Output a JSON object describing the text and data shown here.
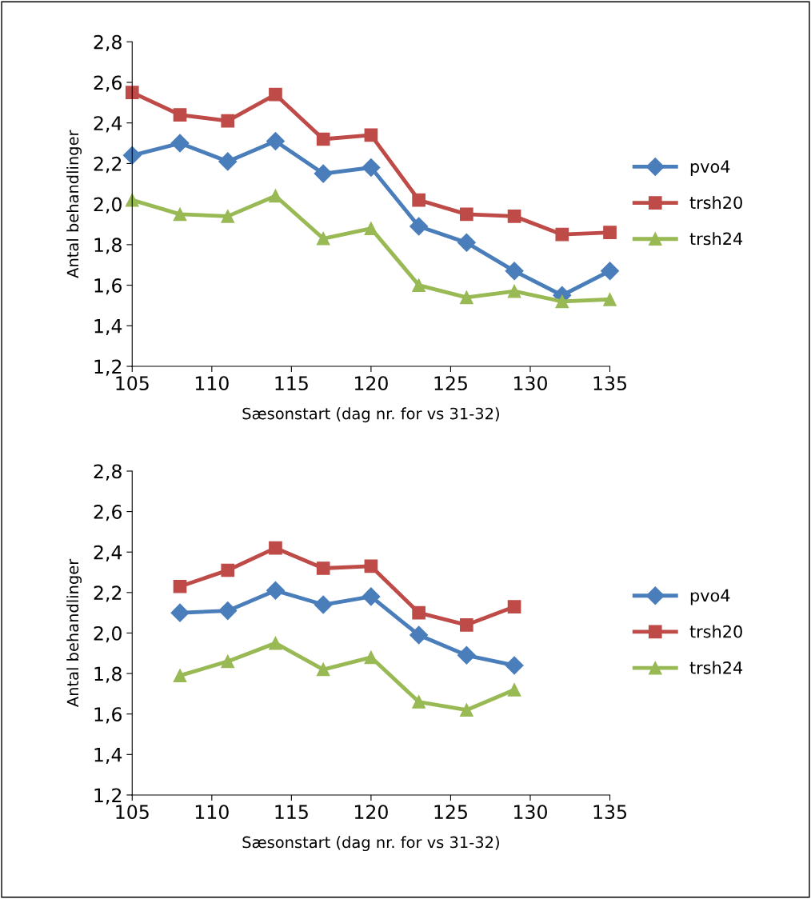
{
  "chart_data": [
    {
      "type": "line",
      "xlabel": "Sæsonstart (dag nr. for vs 31-32)",
      "ylabel": "Antal behandlinger",
      "x": [
        105,
        108,
        111,
        114,
        117,
        120,
        123,
        126,
        129,
        132,
        135
      ],
      "series": [
        {
          "name": "pvo4",
          "color": "#4a7ebb",
          "marker": "diamond",
          "values": [
            2.24,
            2.3,
            2.21,
            2.31,
            2.15,
            2.18,
            1.89,
            1.81,
            1.67,
            1.55,
            1.67
          ]
        },
        {
          "name": "trsh20",
          "color": "#be4b48",
          "marker": "square",
          "values": [
            2.55,
            2.44,
            2.41,
            2.54,
            2.32,
            2.34,
            2.02,
            1.95,
            1.94,
            1.85,
            1.86
          ]
        },
        {
          "name": "trsh24",
          "color": "#98b954",
          "marker": "triangle",
          "values": [
            2.02,
            1.95,
            1.94,
            2.04,
            1.83,
            1.88,
            1.6,
            1.54,
            1.57,
            1.52,
            1.53
          ]
        }
      ],
      "xlim": [
        105,
        135
      ],
      "xticks": [
        105,
        110,
        115,
        120,
        125,
        130,
        135
      ],
      "ylim": [
        1.2,
        2.8
      ],
      "yticks": [
        {
          "value": 1.2,
          "label": "1,2"
        },
        {
          "value": 1.4,
          "label": "1,4"
        },
        {
          "value": 1.6,
          "label": "1,6"
        },
        {
          "value": 1.8,
          "label": "1,8"
        },
        {
          "value": 2.0,
          "label": "2,0"
        },
        {
          "value": 2.2,
          "label": "2,2"
        },
        {
          "value": 2.4,
          "label": "2,4"
        },
        {
          "value": 2.6,
          "label": "2,6"
        },
        {
          "value": 2.8,
          "label": "2,8"
        }
      ],
      "grid": false,
      "legend": "right",
      "line_style": "solid"
    },
    {
      "type": "line",
      "xlabel": "Sæsonstart (dag nr. for vs 31-32)",
      "ylabel": "Antal behandlinger",
      "x": [
        108,
        111,
        114,
        117,
        120,
        123,
        126,
        129
      ],
      "series": [
        {
          "name": "pvo4",
          "color": "#4a7ebb",
          "marker": "diamond",
          "values": [
            2.1,
            2.11,
            2.21,
            2.14,
            2.18,
            1.99,
            1.89,
            1.84
          ]
        },
        {
          "name": "trsh20",
          "color": "#be4b48",
          "marker": "square",
          "values": [
            2.23,
            2.31,
            2.42,
            2.32,
            2.33,
            2.1,
            2.04,
            2.13
          ]
        },
        {
          "name": "trsh24",
          "color": "#98b954",
          "marker": "triangle",
          "values": [
            1.79,
            1.86,
            1.95,
            1.82,
            1.88,
            1.66,
            1.62,
            1.72
          ]
        }
      ],
      "xlim": [
        105,
        135
      ],
      "xticks": [
        105,
        110,
        115,
        120,
        125,
        130,
        135
      ],
      "ylim": [
        1.2,
        2.8
      ],
      "yticks": [
        {
          "value": 1.2,
          "label": "1,2"
        },
        {
          "value": 1.4,
          "label": "1,4"
        },
        {
          "value": 1.6,
          "label": "1,6"
        },
        {
          "value": 1.8,
          "label": "1,8"
        },
        {
          "value": 2.0,
          "label": "2,0"
        },
        {
          "value": 2.2,
          "label": "2,2"
        },
        {
          "value": 2.4,
          "label": "2,4"
        },
        {
          "value": 2.6,
          "label": "2,6"
        },
        {
          "value": 2.8,
          "label": "2,8"
        }
      ],
      "grid": false,
      "legend": "right",
      "line_style": "solid"
    }
  ]
}
